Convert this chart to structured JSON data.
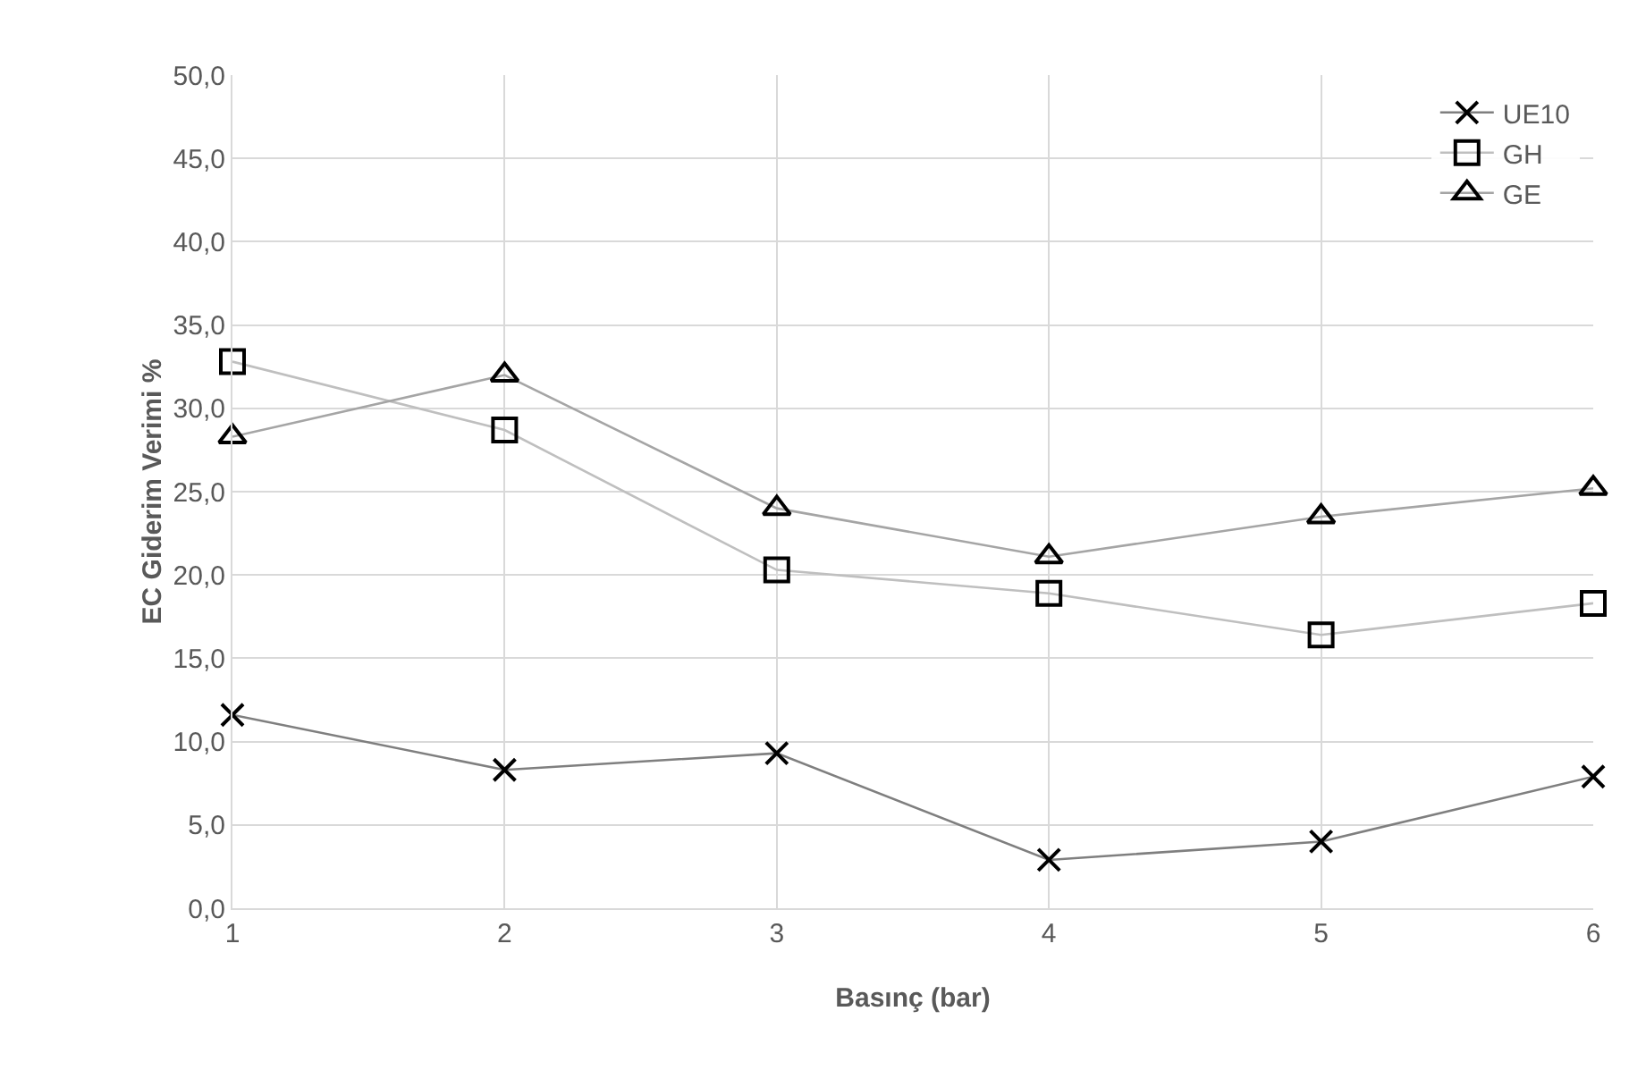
{
  "chart_data": {
    "type": "line",
    "xlabel": "Basınç (bar)",
    "ylabel": "EC Giderim Verimi %",
    "x": [
      1,
      2,
      3,
      4,
      5,
      6
    ],
    "series": [
      {
        "name": "UE10",
        "color": "#7f7f7f",
        "marker": "cross",
        "values": [
          11.6,
          8.3,
          9.3,
          2.9,
          4.0,
          7.9
        ]
      },
      {
        "name": "GH",
        "color": "#bfbfbf",
        "marker": "square",
        "values": [
          32.8,
          28.7,
          20.3,
          18.9,
          16.4,
          18.3
        ]
      },
      {
        "name": "GE",
        "color": "#a5a5a5",
        "marker": "triangle",
        "values": [
          28.3,
          32.0,
          24.0,
          21.1,
          23.5,
          25.2
        ]
      }
    ],
    "xlim": [
      1,
      6
    ],
    "xticks": [
      1,
      2,
      3,
      4,
      5,
      6
    ],
    "ylim": [
      0,
      50
    ],
    "yticks": [
      {
        "value": 0,
        "label": "0,0"
      },
      {
        "value": 5,
        "label": "5,0"
      },
      {
        "value": 10,
        "label": "10,0"
      },
      {
        "value": 15,
        "label": "15,0"
      },
      {
        "value": 20,
        "label": "20,0"
      },
      {
        "value": 25,
        "label": "25,0"
      },
      {
        "value": 30,
        "label": "30,0"
      },
      {
        "value": 35,
        "label": "35,0"
      },
      {
        "value": 40,
        "label": "40,0"
      },
      {
        "value": 45,
        "label": "45,0"
      },
      {
        "value": 50,
        "label": "50,0"
      }
    ],
    "grid": true,
    "legend": "top right",
    "line_style": "solid"
  }
}
